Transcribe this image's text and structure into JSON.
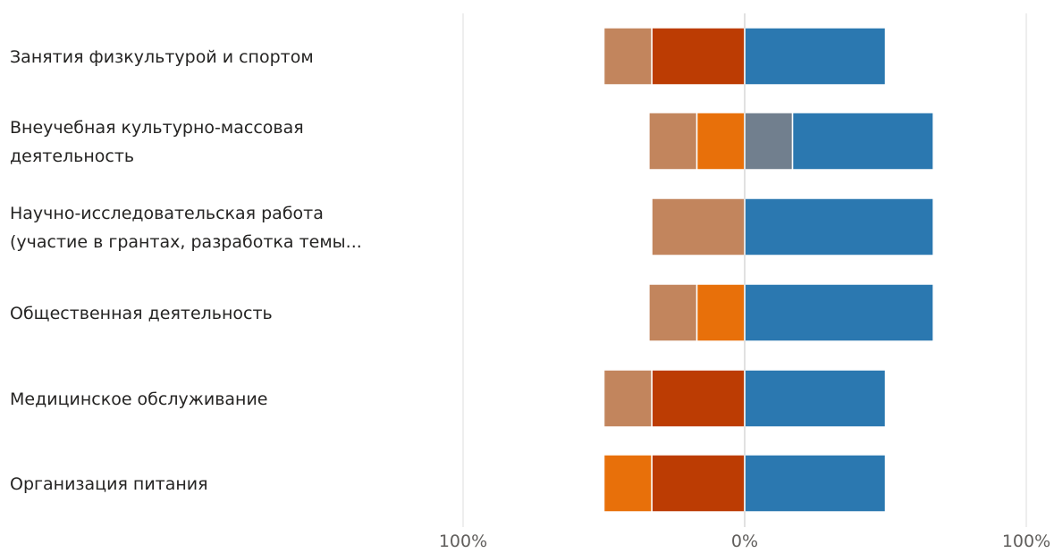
{
  "chart_data": {
    "type": "bar",
    "orientation": "horizontal",
    "stacking": "diverging",
    "categories": [
      [
        "Занятия физкультурой и спортом"
      ],
      [
        "Внеучебная культурно-массовая",
        "деятельность"
      ],
      [
        "Научно-исследовательская работа",
        "(участие в грантах, разработка темы..."
      ],
      [
        "Общественная деятельность"
      ],
      [
        "Медицинское обслуживание"
      ],
      [
        "Организация питания"
      ]
    ],
    "series": [
      {
        "side": "negative",
        "color": "#bc3c03",
        "values": [
          33,
          0,
          0,
          0,
          33,
          33
        ]
      },
      {
        "side": "negative",
        "color": "#e8700a",
        "values": [
          0,
          17,
          0,
          17,
          0,
          17
        ]
      },
      {
        "side": "negative",
        "color": "#c2855d",
        "values": [
          17,
          17,
          33,
          17,
          17,
          0
        ]
      },
      {
        "side": "positive",
        "color": "#717f8e",
        "values": [
          0,
          17,
          0,
          0,
          0,
          0
        ]
      },
      {
        "side": "positive",
        "color": "#2b78b0",
        "values": [
          50,
          50,
          67,
          67,
          50,
          50
        ]
      }
    ],
    "xlim": [
      -100,
      100
    ],
    "x_ticks": [
      "100%",
      "0%",
      "100%"
    ],
    "grid": true
  }
}
